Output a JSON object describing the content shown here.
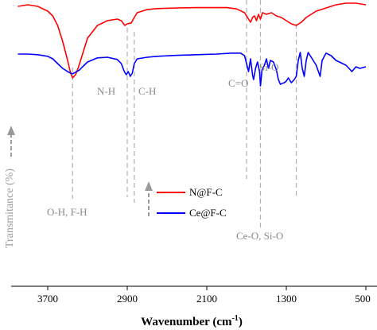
{
  "chart_data": {
    "type": "line",
    "title": "",
    "xlabel_main": "Wavenumber (cm",
    "xlabel_sup": "-1",
    "xlabel_close": ")",
    "ylabel": "Transmitance (%)",
    "xlim": [
      4000,
      500
    ],
    "x_reversed": true,
    "x_ticks": [
      3700,
      2900,
      2100,
      1300,
      500
    ],
    "x_tick_labels": [
      "3700",
      "2900",
      "2100",
      "1300",
      "500"
    ],
    "y_ticks": [],
    "grid": false,
    "legend_placement": "lower-middle",
    "series": [
      {
        "name": "N@F-C",
        "color": "#ff0000",
        "points": [
          [
            4000,
            88
          ],
          [
            3900,
            88.5
          ],
          [
            3800,
            88
          ],
          [
            3700,
            86.5
          ],
          [
            3650,
            85
          ],
          [
            3600,
            82
          ],
          [
            3550,
            77
          ],
          [
            3500,
            71
          ],
          [
            3470,
            67
          ],
          [
            3450,
            65.5
          ],
          [
            3420,
            66.5
          ],
          [
            3390,
            69
          ],
          [
            3350,
            73
          ],
          [
            3300,
            78
          ],
          [
            3200,
            82
          ],
          [
            3100,
            83.5
          ],
          [
            3000,
            84
          ],
          [
            2960,
            83.5
          ],
          [
            2925,
            82
          ],
          [
            2900,
            82.5
          ],
          [
            2860,
            82.8
          ],
          [
            2830,
            84.5
          ],
          [
            2800,
            86
          ],
          [
            2700,
            87
          ],
          [
            2600,
            87.3
          ],
          [
            2400,
            87.5
          ],
          [
            2200,
            87.6
          ],
          [
            2000,
            87.6
          ],
          [
            1900,
            87.6
          ],
          [
            1800,
            87.2
          ],
          [
            1720,
            86
          ],
          [
            1680,
            84
          ],
          [
            1660,
            83
          ],
          [
            1640,
            84.5
          ],
          [
            1620,
            85
          ],
          [
            1600,
            83.5
          ],
          [
            1580,
            85.5
          ],
          [
            1560,
            84
          ],
          [
            1540,
            86
          ],
          [
            1500,
            85.5
          ],
          [
            1450,
            86
          ],
          [
            1400,
            85
          ],
          [
            1350,
            84.5
          ],
          [
            1300,
            83.5
          ],
          [
            1250,
            82.5
          ],
          [
            1200,
            82
          ],
          [
            1150,
            83
          ],
          [
            1100,
            84.5
          ],
          [
            1050,
            85.5
          ],
          [
            1000,
            86.5
          ],
          [
            950,
            87
          ],
          [
            900,
            87.5
          ],
          [
            850,
            88
          ],
          [
            800,
            88.5
          ],
          [
            700,
            89
          ],
          [
            600,
            89
          ],
          [
            500,
            88.5
          ]
        ]
      },
      {
        "name": "Ce@F-C",
        "color": "#0000ff",
        "points": [
          [
            4000,
            73
          ],
          [
            3900,
            73
          ],
          [
            3800,
            72.8
          ],
          [
            3700,
            72.3
          ],
          [
            3650,
            71.5
          ],
          [
            3600,
            70
          ],
          [
            3550,
            68.5
          ],
          [
            3500,
            67.5
          ],
          [
            3470,
            67
          ],
          [
            3450,
            66.8
          ],
          [
            3420,
            67.3
          ],
          [
            3380,
            68
          ],
          [
            3350,
            69
          ],
          [
            3300,
            70.5
          ],
          [
            3200,
            71.8
          ],
          [
            3100,
            72
          ],
          [
            3000,
            71.3
          ],
          [
            2960,
            70
          ],
          [
            2930,
            67.5
          ],
          [
            2910,
            66.5
          ],
          [
            2890,
            67.5
          ],
          [
            2870,
            66
          ],
          [
            2850,
            67
          ],
          [
            2830,
            70
          ],
          [
            2800,
            71.5
          ],
          [
            2700,
            72
          ],
          [
            2600,
            72.3
          ],
          [
            2400,
            72.6
          ],
          [
            2200,
            72.8
          ],
          [
            2000,
            73
          ],
          [
            1850,
            73.3
          ],
          [
            1760,
            73.3
          ],
          [
            1720,
            72.5
          ],
          [
            1700,
            70
          ],
          [
            1680,
            67.5
          ],
          [
            1660,
            71.5
          ],
          [
            1640,
            66.5
          ],
          [
            1630,
            65
          ],
          [
            1610,
            68.5
          ],
          [
            1590,
            70.5
          ],
          [
            1570,
            67.5
          ],
          [
            1560,
            63
          ],
          [
            1545,
            68
          ],
          [
            1520,
            69.5
          ],
          [
            1500,
            71.5
          ],
          [
            1480,
            68.5
          ],
          [
            1460,
            71
          ],
          [
            1430,
            70.5
          ],
          [
            1400,
            68
          ],
          [
            1380,
            65
          ],
          [
            1360,
            63.5
          ],
          [
            1340,
            63.8
          ],
          [
            1320,
            64
          ],
          [
            1300,
            64.5
          ],
          [
            1280,
            65.5
          ],
          [
            1250,
            64
          ],
          [
            1220,
            65
          ],
          [
            1200,
            66
          ],
          [
            1180,
            71
          ],
          [
            1160,
            73.5
          ],
          [
            1140,
            68.5
          ],
          [
            1120,
            66
          ],
          [
            1100,
            71
          ],
          [
            1080,
            73.5
          ],
          [
            1050,
            72
          ],
          [
            1000,
            69.5
          ],
          [
            960,
            66
          ],
          [
            940,
            71
          ],
          [
            900,
            73.3
          ],
          [
            850,
            72.5
          ],
          [
            800,
            71
          ],
          [
            700,
            69.5
          ],
          [
            640,
            67.5
          ],
          [
            600,
            69
          ],
          [
            560,
            68.5
          ],
          [
            500,
            69
          ]
        ]
      }
    ],
    "annotations": {
      "oh_fh": {
        "text": "O-H, F-H",
        "x": 3450
      },
      "nh": {
        "text": "N-H",
        "x": 2900
      },
      "ch": {
        "text": "C-H",
        "x": 2830
      },
      "co": {
        "text": "C=O",
        "x": 1700
      },
      "sio_top": {
        "text": "Si-O",
        "x": 1580
      },
      "ceo_sio": {
        "text": "Ce-O, Si-O",
        "x": 1560
      },
      "other_line": {
        "x": 1200
      }
    }
  }
}
